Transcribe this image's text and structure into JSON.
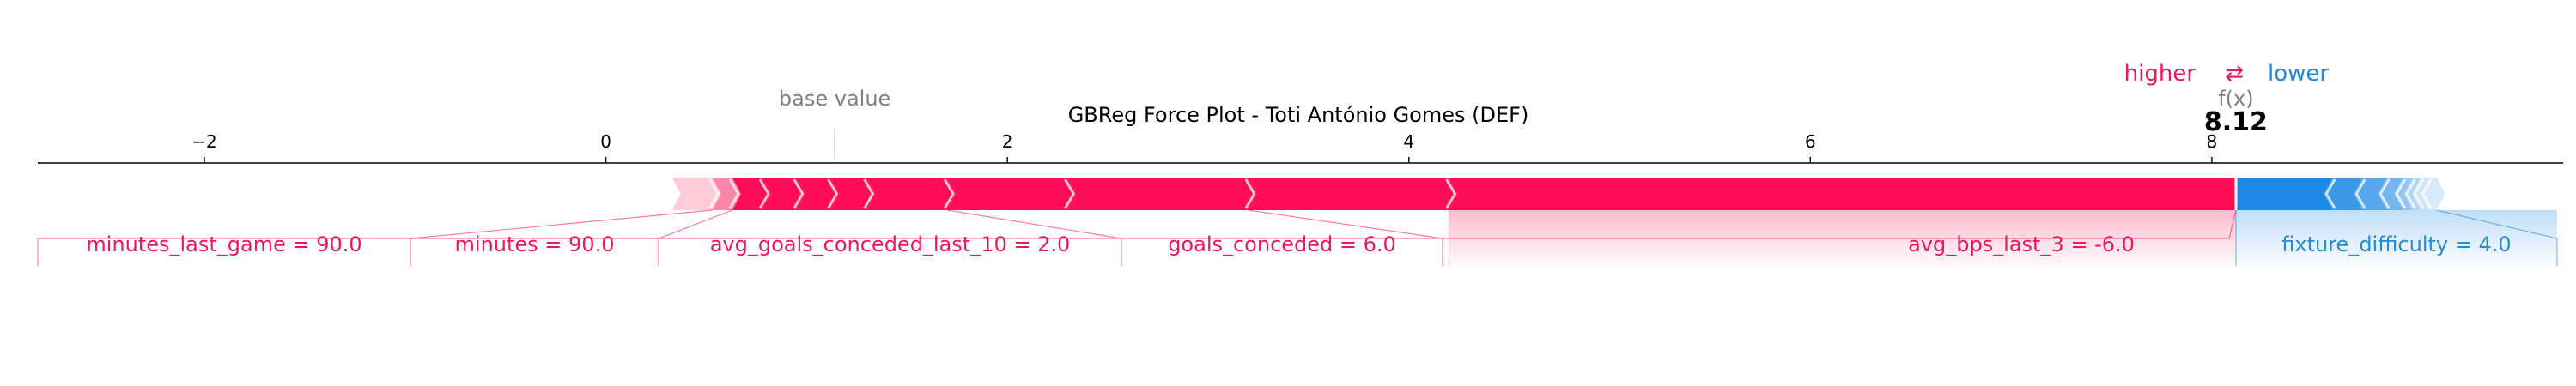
{
  "chart_data": {
    "type": "force",
    "title": "GBReg Force Plot - Toti António Gomes (DEF)",
    "base_value": 1.14,
    "base_value_label": "base value",
    "output_label": "f(x)",
    "output_value": 8.12,
    "output_value_text": "8.12",
    "xlim": [
      -2.83,
      9.75
    ],
    "ticks": [
      -2,
      0,
      2,
      4,
      6,
      8
    ],
    "tick_labels": [
      "−2",
      "0",
      "2",
      "4",
      "6",
      "8"
    ],
    "legend": {
      "higher": "higher",
      "arrow": "⇄",
      "lower": "lower"
    },
    "colors": {
      "positive": "#ff0d57",
      "negative": "#1e88e5",
      "positive_text": "#e8195f",
      "negative_text": "#2a8ad6",
      "axis": "#000000",
      "muted": "#808080"
    },
    "positive_features": [
      {
        "label": "minutes_last_game = 90.0",
        "from": 0.33,
        "to": 0.53
      },
      {
        "label": "minutes = 90.0",
        "from": 0.53,
        "to": 0.63
      },
      {
        "label": "",
        "from": 0.63,
        "to": 0.78
      },
      {
        "label": "",
        "from": 0.78,
        "to": 0.95
      },
      {
        "label": "",
        "from": 0.95,
        "to": 1.12
      },
      {
        "label": "",
        "from": 1.12,
        "to": 1.3
      },
      {
        "label": "avg_goals_conceded_last_10 = 2.0",
        "from": 1.3,
        "to": 1.7
      },
      {
        "label": "",
        "from": 1.7,
        "to": 2.3
      },
      {
        "label": "goals_conceded = 6.0",
        "from": 2.3,
        "to": 3.2
      },
      {
        "label": "",
        "from": 3.2,
        "to": 4.2
      },
      {
        "label": "avg_bps_last_3 = -6.0",
        "from": 4.2,
        "to": 8.12
      }
    ],
    "negative_features": [
      {
        "label": "fixture_difficulty = 4.0",
        "from": 8.12,
        "to": 8.6
      },
      {
        "label": "",
        "from": 8.6,
        "to": 8.75
      },
      {
        "label": "",
        "from": 8.75,
        "to": 8.87
      },
      {
        "label": "",
        "from": 8.87,
        "to": 8.95
      },
      {
        "label": "",
        "from": 8.95,
        "to": 9.0
      },
      {
        "label": "",
        "from": 9.0,
        "to": 9.04
      },
      {
        "label": "",
        "from": 9.04,
        "to": 9.08
      },
      {
        "label": "",
        "from": 9.08,
        "to": 9.12
      }
    ]
  }
}
